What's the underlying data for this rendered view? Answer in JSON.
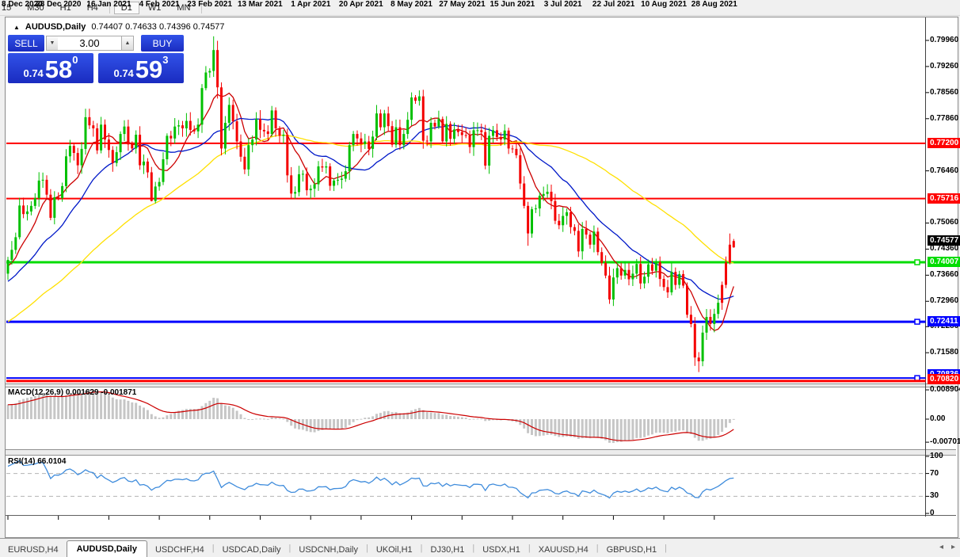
{
  "toolbar": {
    "items": [
      {
        "label": "15",
        "active": false
      },
      {
        "label": "M30",
        "active": false
      },
      {
        "label": "H1",
        "active": false
      },
      {
        "label": "H4",
        "active": false
      },
      {
        "label": "D1",
        "active": true
      },
      {
        "label": "W1",
        "active": false
      },
      {
        "label": "MN",
        "active": false
      }
    ]
  },
  "chart": {
    "symbol_title": "AUDUSD,Daily",
    "ohlc_line": "0.74407 0.74633 0.74396 0.74577",
    "collapse_icon": "▲"
  },
  "trade": {
    "sell_label": "SELL",
    "buy_label": "BUY",
    "volume": "3.00",
    "sell_price": {
      "prefix": "0.74",
      "big": "58",
      "sup": "0"
    },
    "buy_price": {
      "prefix": "0.74",
      "big": "59",
      "sup": "3"
    },
    "spinner_down_icon": "▼",
    "spinner_up_icon": "▲"
  },
  "colors": {
    "bull": "#00C000",
    "bear": "#F40000",
    "ma_fast": "#CC0000",
    "ma_mid": "#0018C8",
    "ma_slow": "#FFE000",
    "level_red": "#FF0000",
    "level_green": "#00DC00",
    "level_blue": "#0000FF",
    "macd_hist": "#c6c6c6",
    "macd_signal": "#CC0000",
    "rsi_line": "#3F8CDC",
    "current_label_bg": "#000000"
  },
  "chart_data": {
    "type": "candlestick",
    "symbol": "AUDUSD",
    "timeframe": "Daily",
    "last_ohlc": {
      "open": 0.74407,
      "high": 0.74633,
      "low": 0.74396,
      "close": 0.74577
    },
    "first_open": 0.737,
    "closes": [
      0.7407,
      0.7434,
      0.7468,
      0.7553,
      0.753,
      0.7537,
      0.7552,
      0.7573,
      0.762,
      0.7622,
      0.7582,
      0.752,
      0.7575,
      0.7573,
      0.7605,
      0.7685,
      0.7713,
      0.7694,
      0.7661,
      0.7705,
      0.779,
      0.7768,
      0.776,
      0.7701,
      0.777,
      0.773,
      0.7702,
      0.7667,
      0.7696,
      0.7745,
      0.7765,
      0.7717,
      0.7706,
      0.7743,
      0.7661,
      0.7671,
      0.7642,
      0.7565,
      0.7604,
      0.7616,
      0.7677,
      0.774,
      0.7733,
      0.7765,
      0.7768,
      0.776,
      0.778,
      0.7756,
      0.7752,
      0.777,
      0.7868,
      0.791,
      0.7914,
      0.797,
      0.787,
      0.7706,
      0.7775,
      0.7823,
      0.7779,
      0.7725,
      0.7684,
      0.765,
      0.7715,
      0.773,
      0.7785,
      0.7756,
      0.7752,
      0.7745,
      0.7808,
      0.776,
      0.774,
      0.7743,
      0.7634,
      0.7585,
      0.7589,
      0.7637,
      0.7638,
      0.7594,
      0.7598,
      0.761,
      0.7658,
      0.7655,
      0.7658,
      0.7606,
      0.762,
      0.7622,
      0.7625,
      0.7645,
      0.7715,
      0.7745,
      0.7733,
      0.7718,
      0.7725,
      0.7705,
      0.7738,
      0.78,
      0.7763,
      0.78,
      0.7766,
      0.7716,
      0.7763,
      0.7715,
      0.7745,
      0.7783,
      0.7843,
      0.7834,
      0.7846,
      0.7727,
      0.7725,
      0.7775,
      0.7765,
      0.7785,
      0.7725,
      0.7772,
      0.7732,
      0.7757,
      0.775,
      0.7742,
      0.7741,
      0.771,
      0.7755,
      0.7755,
      0.775,
      0.766,
      0.774,
      0.7755,
      0.7737,
      0.773,
      0.7754,
      0.7706,
      0.7705,
      0.7688,
      0.7612,
      0.7552,
      0.7478,
      0.7543,
      0.7545,
      0.7579,
      0.7584,
      0.759,
      0.7565,
      0.7512,
      0.75,
      0.7525,
      0.7535,
      0.7495,
      0.7485,
      0.743,
      0.749,
      0.7475,
      0.7448,
      0.7483,
      0.7428,
      0.7399,
      0.7365,
      0.7301,
      0.736,
      0.7385,
      0.7365,
      0.738,
      0.7355,
      0.737,
      0.7396,
      0.7344,
      0.7362,
      0.7395,
      0.7378,
      0.7401,
      0.7356,
      0.7334,
      0.732,
      0.7375,
      0.734,
      0.7369,
      0.7338,
      0.726,
      0.7235,
      0.7145,
      0.7135,
      0.7212,
      0.7254,
      0.7235,
      0.7262,
      0.7292,
      0.734,
      0.74,
      0.7448,
      0.74577
    ],
    "high_overrides": {
      "53": 0.8007,
      "54": 0.7995,
      "186": 0.7478
    },
    "low_overrides": {
      "37": 0.7564,
      "54": 0.784,
      "134": 0.7445,
      "155": 0.7289,
      "178": 0.7106,
      "186": 0.7395
    },
    "red_overrides": [
      184,
      185,
      186,
      187
    ],
    "indicator_seed": {
      "start": 0.703,
      "end": 0.7407,
      "count": 60
    },
    "moving_averages": [
      {
        "period": 8,
        "color": "#CC0000"
      },
      {
        "period": 21,
        "color": "#0018C8"
      },
      {
        "period": 55,
        "color": "#FFE000"
      }
    ],
    "price_ticks": [
      "0.79960",
      "0.79260",
      "0.78560",
      "0.77860",
      "0.76460",
      "0.75060",
      "0.74360",
      "0.73660",
      "0.72960",
      "0.72280",
      "0.71580"
    ],
    "levels": [
      {
        "price": 0.772,
        "label": "0.77200",
        "color": "#FF0000",
        "width": 2,
        "handle": false
      },
      {
        "price": 0.75716,
        "label": "0.75716",
        "color": "#FF0000",
        "width": 2,
        "handle": false
      },
      {
        "price": 0.74007,
        "label": "0.74007",
        "color": "#00DC00",
        "width": 3,
        "handle": true
      },
      {
        "price": 0.72411,
        "label": "0.72411",
        "color": "#0000FF",
        "width": 3,
        "handle": true
      },
      {
        "price": 0.70836,
        "label": "0.70836",
        "color": "#0000FF",
        "width": 2,
        "handle": true
      },
      {
        "price": 0.7082,
        "label": "0.70820",
        "color": "#FF0000",
        "width": 3,
        "handle": false
      }
    ],
    "current_price_label": "0.74577",
    "date_ticks": [
      {
        "label": "8 Dec 2020",
        "bar": 0
      },
      {
        "label": "28 Dec 2020",
        "bar": 13
      },
      {
        "label": "16 Jan 2021",
        "bar": 26
      },
      {
        "label": "4 Feb 2021",
        "bar": 39
      },
      {
        "label": "23 Feb 2021",
        "bar": 52
      },
      {
        "label": "13 Mar 2021",
        "bar": 65
      },
      {
        "label": "1 Apr 2021",
        "bar": 78
      },
      {
        "label": "20 Apr 2021",
        "bar": 91
      },
      {
        "label": "8 May 2021",
        "bar": 104
      },
      {
        "label": "27 May 2021",
        "bar": 117
      },
      {
        "label": "15 Jun 2021",
        "bar": 130
      },
      {
        "label": "3 Jul 2021",
        "bar": 143
      },
      {
        "label": "22 Jul 2021",
        "bar": 156
      },
      {
        "label": "10 Aug 2021",
        "bar": 169
      },
      {
        "label": "28 Aug 2021",
        "bar": 182
      }
    ],
    "macd": {
      "label": "MACD(12,26,9)",
      "values": "0.001629 -0.001871",
      "fast": 12,
      "slow": 26,
      "signal": 9,
      "scale_labels": [
        {
          "text": "0.008904",
          "value": 0.008904
        },
        {
          "text": "0.00",
          "value": 0
        },
        {
          "text": "-0.007013",
          "value": -0.007013
        }
      ]
    },
    "rsi": {
      "label": "RSI(14)",
      "value": "66.0104",
      "period": 14,
      "scale_labels": [
        {
          "text": "100",
          "value": 100
        },
        {
          "text": "70",
          "value": 70
        },
        {
          "text": "30",
          "value": 30
        },
        {
          "text": "0",
          "value": 0
        }
      ],
      "guides": [
        70,
        30
      ]
    }
  },
  "tabs": {
    "items": [
      {
        "label": "EURUSD,H4",
        "active": false
      },
      {
        "label": "AUDUSD,Daily",
        "active": true
      },
      {
        "label": "USDCHF,H4",
        "active": false
      },
      {
        "label": "USDCAD,Daily",
        "active": false
      },
      {
        "label": "USDCNH,Daily",
        "active": false
      },
      {
        "label": "UKOil,H1",
        "active": false
      },
      {
        "label": "DJ30,H1",
        "active": false
      },
      {
        "label": "USDX,H1",
        "active": false
      },
      {
        "label": "XAUUSD,H4",
        "active": false
      },
      {
        "label": "GBPUSD,H1",
        "active": false
      }
    ],
    "scroll_left_icon": "◂",
    "scroll_right_icon": "▸"
  }
}
